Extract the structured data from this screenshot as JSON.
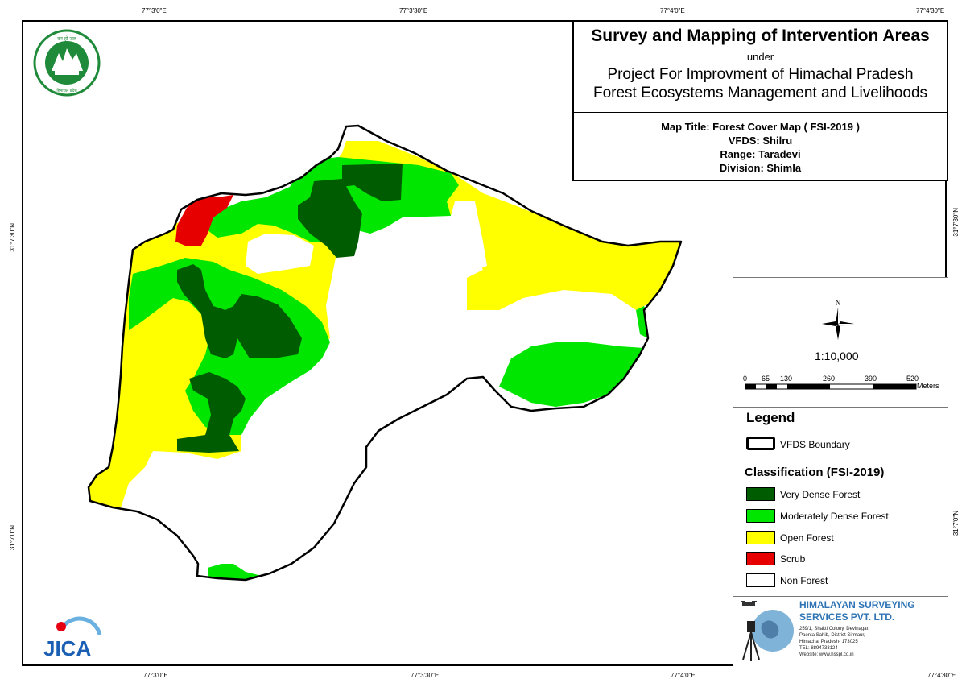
{
  "coords": {
    "top": [
      "77°3'0\"E",
      "77°3'30\"E",
      "77°4'0\"E",
      "77°4'30\"E"
    ],
    "bottom": [
      "77°3'0\"E",
      "77°3'30\"E",
      "77°4'0\"E",
      "77°4'30\"E"
    ],
    "left": [
      "31°7'30\"N",
      "31°7'0\"N"
    ],
    "right": [
      "31°7'30\"N",
      "31°7'0\"N"
    ]
  },
  "title": {
    "main": "Survey and Mapping of Intervention Areas",
    "under": "under",
    "project_line1": "Project For Improvment of Himachal Pradesh",
    "project_line2": "Forest Ecosystems Management and Livelihoods"
  },
  "map_info": {
    "map_title": "Map Title: Forest Cover Map ( FSI-2019 )",
    "vfds": "VFDS: Shilru",
    "range": "Range: Taradevi",
    "division": "Division: Shimla"
  },
  "north_label": "N",
  "scale": {
    "ratio": "1:10,000",
    "ticks": [
      "0",
      "65",
      "130",
      "260",
      "390",
      "520"
    ],
    "unit": "Meters"
  },
  "legend": {
    "heading": "Legend",
    "boundary": "VFDS Boundary",
    "class_heading": "Classification (FSI-2019)",
    "items": [
      {
        "label": "Very Dense Forest",
        "color": "#005c00"
      },
      {
        "label": "Moderately Dense Forest",
        "color": "#00e600"
      },
      {
        "label": "Open Forest",
        "color": "#ffff00"
      },
      {
        "label": "Scrub",
        "color": "#e60000"
      },
      {
        "label": "Non Forest",
        "color": "#ffffff"
      }
    ]
  },
  "company": {
    "name_line1": "HIMALAYAN SURVEYING",
    "name_line2": "SERVICES PVT. LTD.",
    "address": [
      "259/1, Shakti Colony, Devinagar,",
      "Paonta Sahib, District Sirmaur,",
      "Himachal Pradesh- 173025",
      "TEL: 8894733124",
      "Website: www.hsspl.co.in"
    ]
  },
  "logos": {
    "forest_dept_text": "वन हो जल, जिसमें हरियाली - वन विभाग हिमाचल प्रदेश",
    "jica": "JICA"
  }
}
